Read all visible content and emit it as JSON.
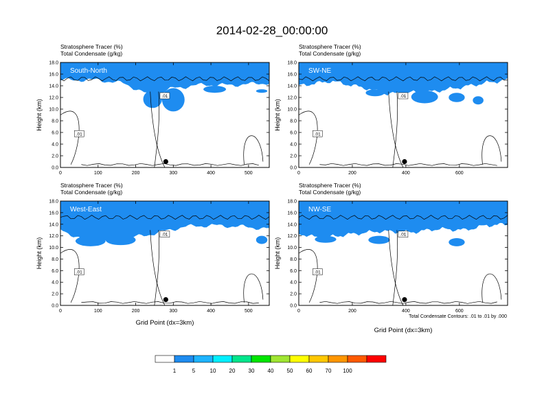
{
  "figure": {
    "title": "2014-02-28_00:00:00",
    "xlabel": "Grid Point (dx=3km)",
    "footnote": "Total Condensate Contours: .01 to .01 by .000",
    "contour_label": ".01",
    "marker": "location-dot"
  },
  "colorbar": {
    "labels": [
      "1",
      "5",
      "10",
      "20",
      "30",
      "40",
      "50",
      "60",
      "70",
      "100"
    ],
    "colors": [
      "#ffffff",
      "#1e8cf0",
      "#1eb4ff",
      "#00f0ff",
      "#00e68c",
      "#00e600",
      "#a0e632",
      "#ffff00",
      "#ffc800",
      "#ff9600",
      "#ff5a00",
      "#ff0000"
    ]
  },
  "chart_data": [
    {
      "type": "heatmap",
      "subtitle1": "Stratosphere Tracer   (%)",
      "subtitle2": "Total Condensate   (g/kg)",
      "label": "South-North",
      "ylabel": "Height (km)",
      "xlim": [
        0,
        555
      ],
      "ylim": [
        0,
        18
      ],
      "xticks": [
        "0",
        "100",
        "200",
        "300",
        "400",
        "500"
      ],
      "yticks": [
        "0.0",
        "2.0",
        "4.0",
        "6.0",
        "8.0",
        "10.0",
        "12.0",
        "14.0",
        "16.0",
        "18.0"
      ],
      "marker_x": 280,
      "marker_y": 1.0,
      "band_base_km": [
        [
          0,
          15.0
        ],
        [
          100,
          15.0
        ],
        [
          170,
          14.4
        ],
        [
          240,
          12.3
        ],
        [
          300,
          13.6
        ],
        [
          380,
          14.2
        ],
        [
          450,
          14.1
        ],
        [
          555,
          14.5
        ]
      ],
      "blue_patches_km": [
        [
          220,
          10.2,
          270,
          13.2
        ],
        [
          270,
          9.6,
          330,
          13.6
        ],
        [
          380,
          12.8,
          440,
          14.0
        ],
        [
          520,
          12.8,
          550,
          13.4
        ]
      ]
    },
    {
      "type": "heatmap",
      "subtitle1": "Stratosphere Tracer   (%)",
      "subtitle2": "Total Condensate   (g/kg)",
      "label": "SW-NE",
      "ylabel": "Height (km)",
      "xlim": [
        0,
        780
      ],
      "ylim": [
        0,
        18
      ],
      "xticks": [
        "0",
        "200",
        "400",
        "600"
      ],
      "yticks": [
        "0.0",
        "2.0",
        "4.0",
        "6.0",
        "8.0",
        "10.0",
        "12.0",
        "14.0",
        "16.0",
        "18.0"
      ],
      "marker_x": 395,
      "marker_y": 1.0,
      "band_base_km": [
        [
          0,
          14.0
        ],
        [
          120,
          14.8
        ],
        [
          250,
          13.6
        ],
        [
          330,
          12.6
        ],
        [
          400,
          12.8
        ],
        [
          500,
          13.0
        ],
        [
          600,
          13.7
        ],
        [
          700,
          14.5
        ],
        [
          780,
          15.0
        ]
      ],
      "blue_patches_km": [
        [
          250,
          12.2,
          320,
          13.4
        ],
        [
          420,
          11.0,
          520,
          13.2
        ],
        [
          560,
          11.2,
          620,
          12.8
        ],
        [
          650,
          10.8,
          690,
          12.2
        ]
      ]
    },
    {
      "type": "heatmap",
      "subtitle1": "Stratosphere Tracer   (%)",
      "subtitle2": "Total Condensate   (g/kg)",
      "label": "West-East",
      "ylabel": "Height (km)",
      "xlim": [
        0,
        555
      ],
      "ylim": [
        0,
        18
      ],
      "xticks": [
        "0",
        "100",
        "200",
        "300",
        "400",
        "500"
      ],
      "yticks": [
        "0.0",
        "2.0",
        "4.0",
        "6.0",
        "8.0",
        "10.0",
        "12.0",
        "14.0",
        "16.0",
        "18.0"
      ],
      "marker_x": 280,
      "marker_y": 1.0,
      "band_base_km": [
        [
          0,
          13.0
        ],
        [
          60,
          11.4
        ],
        [
          120,
          11.2
        ],
        [
          180,
          11.6
        ],
        [
          250,
          12.4
        ],
        [
          330,
          13.6
        ],
        [
          400,
          13.8
        ],
        [
          480,
          13.6
        ],
        [
          555,
          13.2
        ]
      ],
      "blue_patches_km": [
        [
          40,
          10.2,
          120,
          12.0
        ],
        [
          120,
          10.4,
          200,
          12.2
        ],
        [
          520,
          10.6,
          550,
          12.0
        ]
      ]
    },
    {
      "type": "heatmap",
      "subtitle1": "Stratosphere Tracer   (%)",
      "subtitle2": "Total Condensate   (g/kg)",
      "label": "NW-SE",
      "ylabel": "Height (km)",
      "xlim": [
        0,
        780
      ],
      "ylim": [
        0,
        18
      ],
      "xticks": [
        "0",
        "200",
        "400",
        "600"
      ],
      "yticks": [
        "0.0",
        "2.0",
        "4.0",
        "6.0",
        "8.0",
        "10.0",
        "12.0",
        "14.0",
        "16.0",
        "18.0"
      ],
      "marker_x": 395,
      "marker_y": 1.0,
      "band_base_km": [
        [
          0,
          12.4
        ],
        [
          80,
          11.6
        ],
        [
          180,
          12.2
        ],
        [
          300,
          12.8
        ],
        [
          420,
          12.6
        ],
        [
          520,
          13.2
        ],
        [
          620,
          13.0
        ],
        [
          700,
          13.8
        ],
        [
          780,
          14.0
        ]
      ],
      "blue_patches_km": [
        [
          60,
          10.8,
          140,
          12.0
        ],
        [
          260,
          10.6,
          340,
          12.0
        ],
        [
          560,
          10.2,
          620,
          11.6
        ]
      ]
    }
  ]
}
